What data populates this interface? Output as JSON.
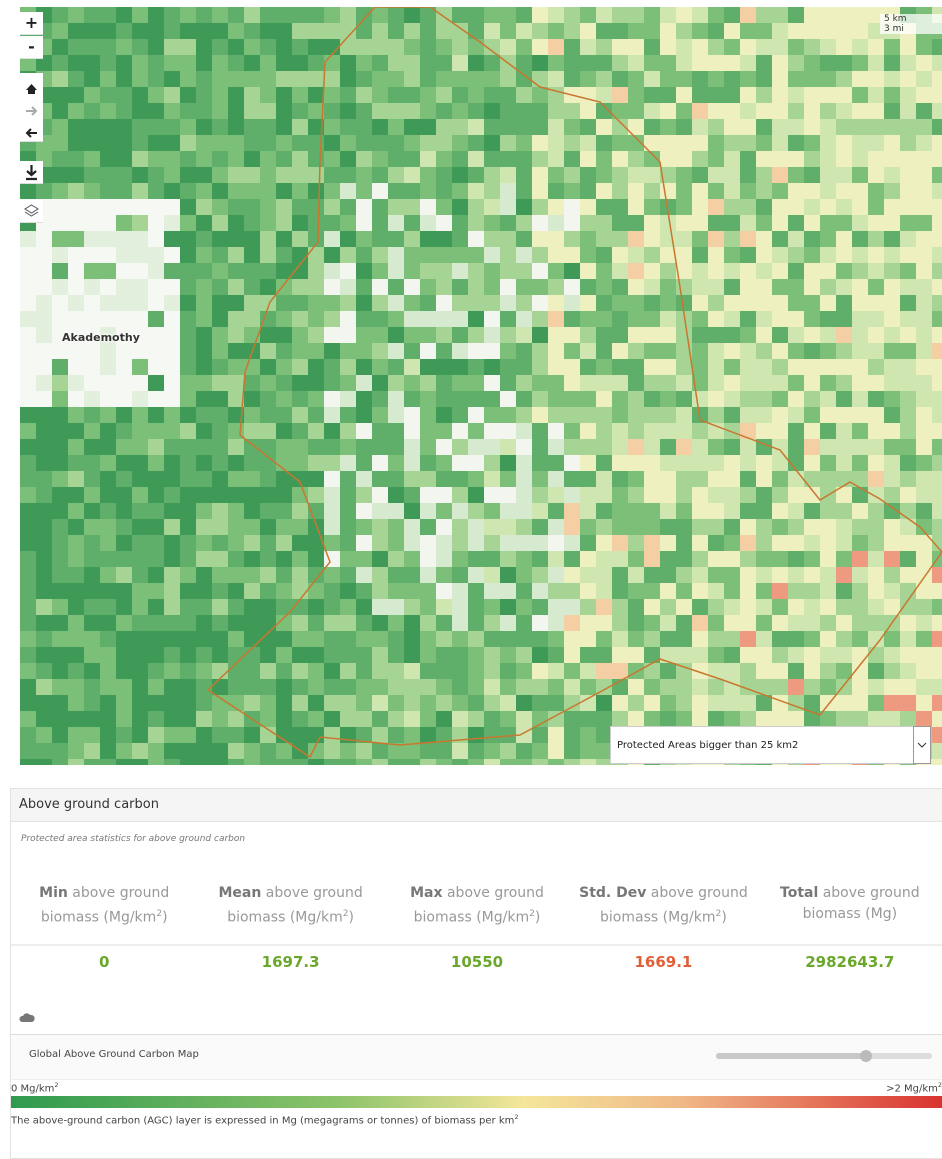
{
  "map": {
    "controls": [
      "+",
      "-"
    ],
    "scale": [
      "5 km",
      "3 mi"
    ],
    "place_label": "Akademothy",
    "layer_select": "Protected Areas bigger than 25 km2"
  },
  "panel": {
    "title": "Above ground carbon",
    "subtitle": "Protected area statistics for above ground carbon",
    "stats": [
      {
        "bold": "Min",
        "label": " above ground biomass (Mg/km",
        "sup": "2",
        "end": ")",
        "value": 0,
        "color": "#6aa82c"
      },
      {
        "bold": "Mean",
        "label": " above ground biomass (Mg/km",
        "sup": "2",
        "end": ")",
        "value": 1697.3,
        "color": "#6aa82c"
      },
      {
        "bold": "Max",
        "label": " above ground biomass (Mg/km",
        "sup": "2",
        "end": ")",
        "value": 10550,
        "color": "#6aa82c"
      },
      {
        "bold": "Std. Dev",
        "label": " above ground biomass (Mg/km",
        "sup": "2",
        "end": ")",
        "value": 1669.1,
        "color": "#e0603a"
      },
      {
        "bold": "Total",
        "label": " above ground biomass (Mg)",
        "value": 2982643.7,
        "color": "#6aa82c"
      }
    ],
    "legend": {
      "title": "Global Above Ground Carbon Map",
      "min": "0 Mg/km",
      "min_sup": "2",
      "max": ">2 Mg/km",
      "max_sup": "2",
      "description": "The above-ground carbon (AGC) layer is expressed in Mg (megagrams or tonnes) of biomass per km",
      "description_sup": "2"
    }
  }
}
